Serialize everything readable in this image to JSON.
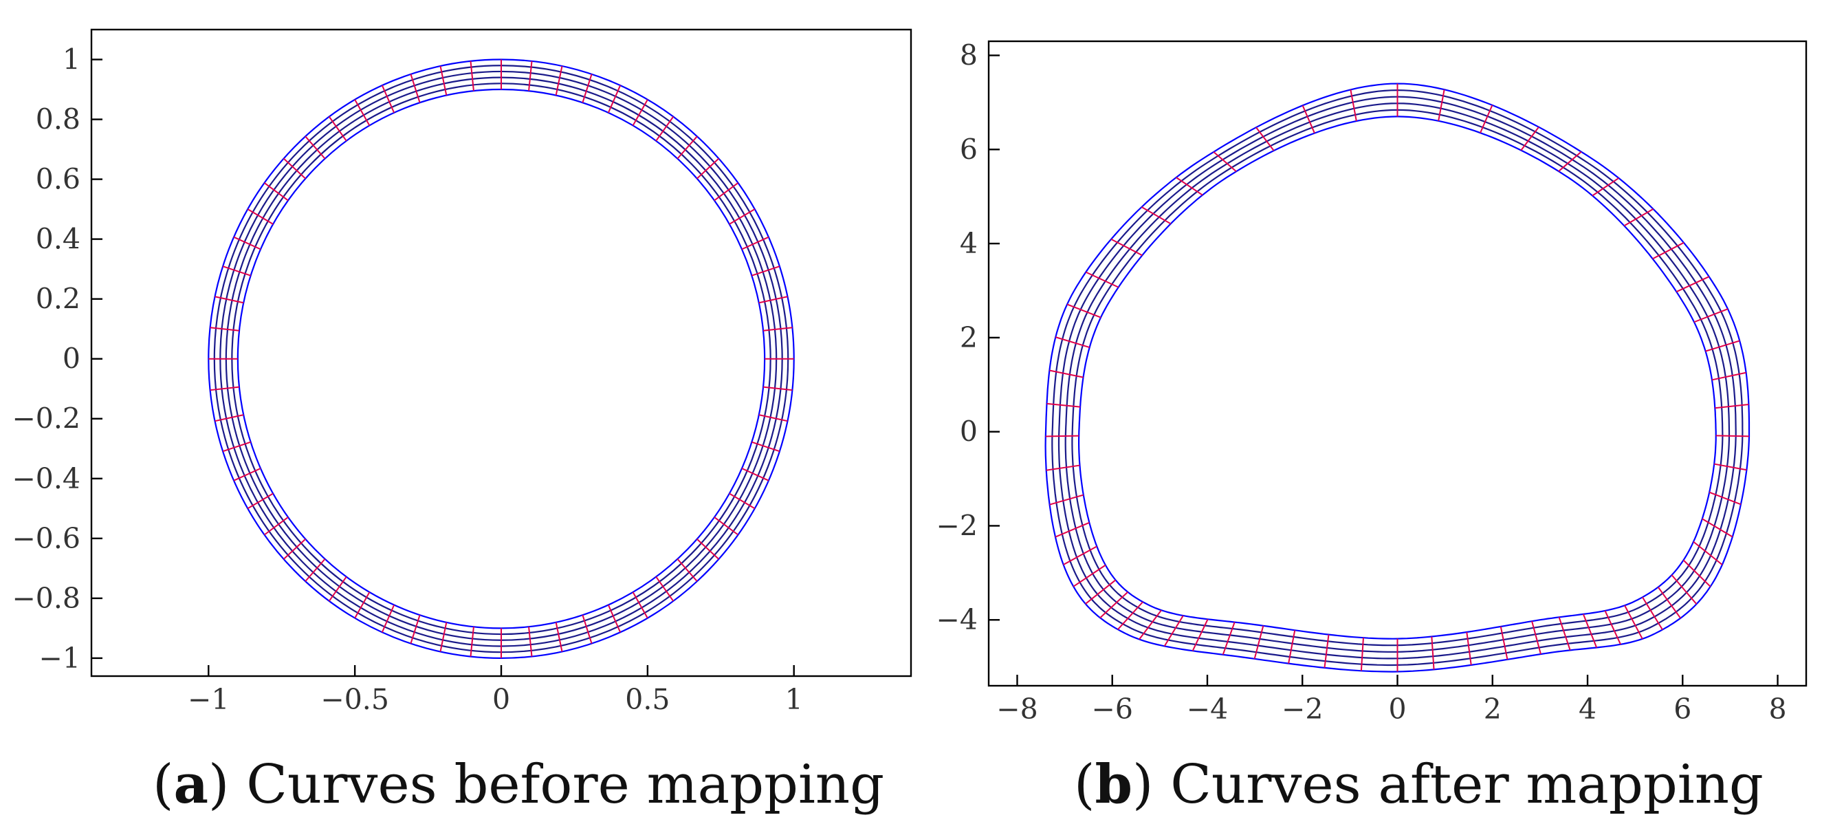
{
  "colors": {
    "ring": "#0000ff",
    "radial": "#e0004a",
    "frame": "#000000",
    "ticks_text": "#333333"
  },
  "chart_data": [
    {
      "type": "line",
      "id": "a",
      "caption_label": "a",
      "caption_text": "Curves before mapping",
      "title": "",
      "xlabel": "",
      "ylabel": "",
      "xlim": [
        -1.4,
        1.4
      ],
      "ylim": [
        -1.06,
        1.1
      ],
      "xticks": [
        -1,
        -0.5,
        0,
        0.5,
        1
      ],
      "xtick_labels": [
        "−1",
        "−0.5",
        "0",
        "0.5",
        "1"
      ],
      "yticks": [
        1,
        0.8,
        0.6,
        0.4,
        0.2,
        0,
        -0.2,
        -0.4,
        -0.6,
        -0.8,
        -1
      ],
      "ytick_labels": [
        "1",
        "0.8",
        "0.6",
        "0.4",
        "0.2",
        "0",
        "−0.2",
        "−0.4",
        "−0.6",
        "−0.8",
        "−1"
      ],
      "series": [
        {
          "name": "concentric curves",
          "shape": "circle",
          "radii": [
            0.9,
            0.92,
            0.94,
            0.96,
            0.98,
            1.0
          ]
        },
        {
          "name": "radial segments",
          "count": 60,
          "inner_radius": 0.9,
          "outer_radius": 1.0
        }
      ]
    },
    {
      "type": "line",
      "id": "b",
      "caption_label": "b",
      "caption_text": "Curves after mapping",
      "title": "",
      "xlabel": "",
      "ylabel": "",
      "xlim": [
        -8.6,
        8.6
      ],
      "ylim": [
        -5.4,
        8.3
      ],
      "xticks": [
        -8,
        -6,
        -4,
        -2,
        0,
        2,
        4,
        6,
        8
      ],
      "xtick_labels": [
        "−8",
        "−6",
        "−4",
        "−2",
        "0",
        "2",
        "4",
        "6",
        "8"
      ],
      "yticks": [
        8,
        6,
        4,
        2,
        0,
        -2,
        -4
      ],
      "ytick_labels": [
        "8",
        "6",
        "4",
        "2",
        "0",
        "−2",
        "−4"
      ],
      "series": [
        {
          "name": "inner boundary",
          "shape": "tunnel",
          "points": [
            [
              0,
              6.7
            ],
            [
              3.6,
              5.4
            ],
            [
              6.1,
              2.6
            ],
            [
              6.7,
              0
            ],
            [
              6.2,
              -2.4
            ],
            [
              5.0,
              -3.6
            ],
            [
              3.0,
              -4.0
            ],
            [
              0,
              -4.4
            ],
            [
              -3.0,
              -4.1
            ],
            [
              -5.2,
              -3.7
            ],
            [
              -6.3,
              -2.5
            ],
            [
              -6.7,
              0
            ],
            [
              -6.1,
              2.7
            ],
            [
              -3.6,
              5.4
            ]
          ]
        },
        {
          "name": "outer boundary",
          "shape": "tunnel",
          "points": [
            [
              0,
              7.4
            ],
            [
              4.1,
              5.8
            ],
            [
              6.8,
              2.9
            ],
            [
              7.4,
              0
            ],
            [
              6.8,
              -2.9
            ],
            [
              5.4,
              -4.3
            ],
            [
              3.2,
              -4.7
            ],
            [
              0,
              -5.1
            ],
            [
              -3.2,
              -4.8
            ],
            [
              -5.7,
              -4.3
            ],
            [
              -7.0,
              -2.9
            ],
            [
              -7.4,
              0
            ],
            [
              -6.8,
              3.0
            ],
            [
              -4.1,
              5.8
            ]
          ]
        },
        {
          "name": "concentric curves",
          "count": 6
        },
        {
          "name": "radial segments",
          "count": 60
        }
      ]
    }
  ]
}
